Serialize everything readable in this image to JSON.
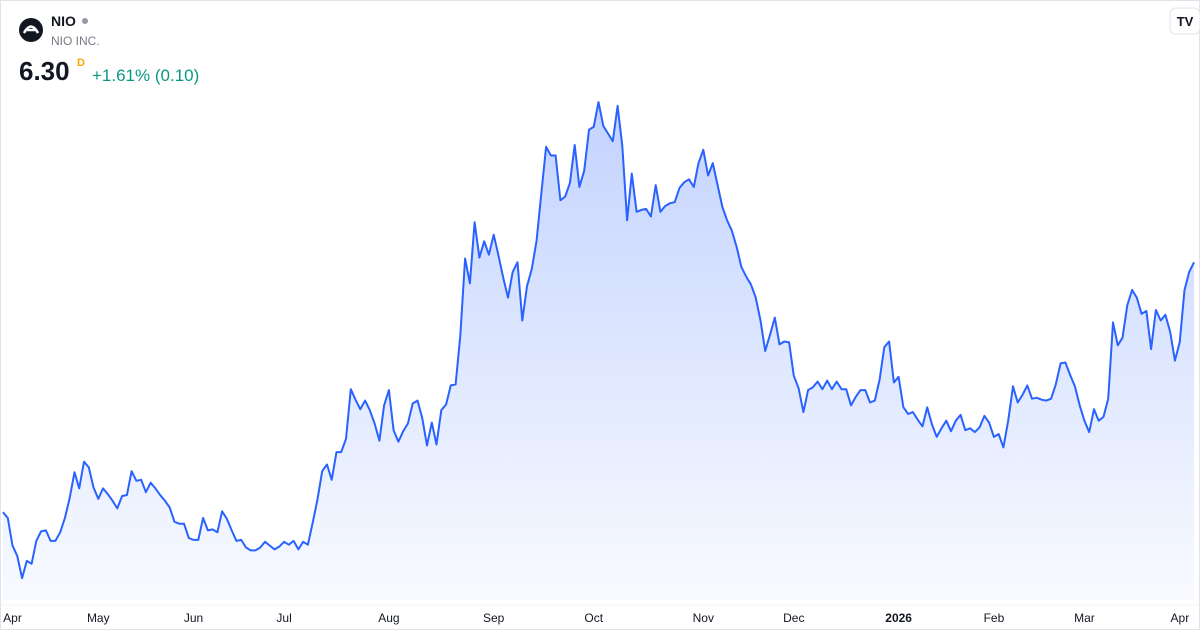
{
  "header": {
    "symbol": "NIO",
    "name": "NIO INC.",
    "price": "6.30",
    "price_badge": "D",
    "change": "+1.61% (0.10)"
  },
  "chart_data": {
    "type": "area",
    "color": "#2962ff",
    "xlim": [
      0,
      250
    ],
    "xticks": [
      {
        "value": 2,
        "label": "Apr"
      },
      {
        "value": 20,
        "label": "May"
      },
      {
        "value": 40,
        "label": "Jun"
      },
      {
        "value": 59,
        "label": "Jul"
      },
      {
        "value": 81,
        "label": "Aug"
      },
      {
        "value": 103,
        "label": "Sep"
      },
      {
        "value": 124,
        "label": "Oct"
      },
      {
        "value": 147,
        "label": "Nov"
      },
      {
        "value": 166,
        "label": "Dec"
      },
      {
        "value": 188,
        "label": "2026"
      },
      {
        "value": 208,
        "label": "Feb"
      },
      {
        "value": 227,
        "label": "Mar"
      },
      {
        "value": 249,
        "label": "Apr"
      }
    ],
    "ylim": [
      2.76,
      9.05
    ],
    "values": [
      3.68,
      3.62,
      3.33,
      3.22,
      2.99,
      3.17,
      3.14,
      3.38,
      3.48,
      3.49,
      3.38,
      3.38,
      3.47,
      3.62,
      3.83,
      4.1,
      3.93,
      4.21,
      4.15,
      3.94,
      3.82,
      3.93,
      3.87,
      3.8,
      3.72,
      3.85,
      3.86,
      4.11,
      4.01,
      4.02,
      3.89,
      3.99,
      3.93,
      3.86,
      3.8,
      3.73,
      3.58,
      3.56,
      3.56,
      3.41,
      3.39,
      3.39,
      3.62,
      3.49,
      3.5,
      3.47,
      3.69,
      3.61,
      3.49,
      3.38,
      3.39,
      3.31,
      3.28,
      3.28,
      3.31,
      3.37,
      3.33,
      3.29,
      3.32,
      3.37,
      3.34,
      3.38,
      3.29,
      3.37,
      3.34,
      3.57,
      3.81,
      4.11,
      4.18,
      4.02,
      4.31,
      4.31,
      4.45,
      4.97,
      4.86,
      4.76,
      4.85,
      4.75,
      4.61,
      4.43,
      4.8,
      4.96,
      4.54,
      4.42,
      4.53,
      4.61,
      4.82,
      4.85,
      4.67,
      4.38,
      4.62,
      4.39,
      4.75,
      4.81,
      5.01,
      5.02,
      5.53,
      6.34,
      6.08,
      6.72,
      6.35,
      6.52,
      6.38,
      6.59,
      6.37,
      6.14,
      5.93,
      6.2,
      6.3,
      5.69,
      6.05,
      6.23,
      6.53,
      7.02,
      7.51,
      7.42,
      7.42,
      6.95,
      6.99,
      7.13,
      7.53,
      7.09,
      7.26,
      7.69,
      7.72,
      7.98,
      7.73,
      7.65,
      7.57,
      7.94,
      7.52,
      6.74,
      7.23,
      6.83,
      6.85,
      6.86,
      6.78,
      7.11,
      6.83,
      6.89,
      6.92,
      6.93,
      7.08,
      7.14,
      7.17,
      7.09,
      7.34,
      7.48,
      7.21,
      7.34,
      7.11,
      6.88,
      6.74,
      6.63,
      6.46,
      6.25,
      6.15,
      6.07,
      5.93,
      5.69,
      5.37,
      5.54,
      5.72,
      5.44,
      5.47,
      5.46,
      5.11,
      4.98,
      4.73,
      4.96,
      4.99,
      5.05,
      4.97,
      5.06,
      4.97,
      5.05,
      4.97,
      4.97,
      4.8,
      4.89,
      4.96,
      4.96,
      4.83,
      4.85,
      5.07,
      5.41,
      5.47,
      5.04,
      5.1,
      4.78,
      4.71,
      4.73,
      4.65,
      4.58,
      4.78,
      4.6,
      4.47,
      4.56,
      4.64,
      4.53,
      4.64,
      4.7,
      4.54,
      4.56,
      4.52,
      4.57,
      4.69,
      4.62,
      4.47,
      4.5,
      4.36,
      4.64,
      5.0,
      4.83,
      4.91,
      5.01,
      4.87,
      4.88,
      4.86,
      4.85,
      4.87,
      5.02,
      5.24,
      5.25,
      5.12,
      5.0,
      4.8,
      4.64,
      4.52,
      4.76,
      4.64,
      4.68,
      4.87,
      5.67,
      5.43,
      5.51,
      5.85,
      6.01,
      5.93,
      5.76,
      5.79,
      5.39,
      5.8,
      5.69,
      5.75,
      5.57,
      5.27,
      5.46,
      6.01,
      6.2,
      6.3
    ]
  }
}
